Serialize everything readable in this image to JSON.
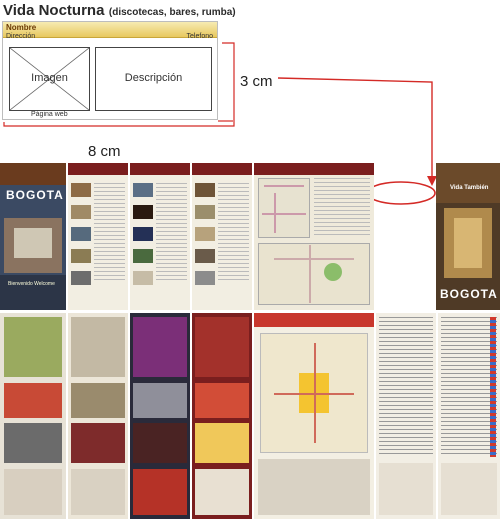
{
  "title": {
    "main": "Vida Nocturna",
    "sub": "(discotecas, bares, rumba)"
  },
  "card": {
    "nombre": "Nombre",
    "direccion": "Dirección",
    "telefono": "Telefono",
    "imagen": "Imagen",
    "descripcion": "Descripción",
    "pagina_web": "Página web"
  },
  "dimensions": {
    "width_label": "8 cm",
    "height_label": "3 cm"
  },
  "brochure": {
    "cover_title": "BOGOTA",
    "cover_title_right": "BOGOTA",
    "vida_tambien": "Vida También",
    "bienvenido": "Bienvenido Welcome"
  },
  "colors": {
    "accent_red": "#d42a26",
    "gold": "#e8c85f",
    "maroon": "#7a1e1e"
  }
}
